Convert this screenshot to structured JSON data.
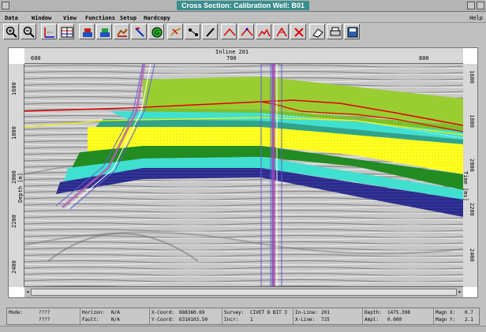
{
  "window": {
    "title": "Cross Section:   Calibration Well: B01"
  },
  "menu": {
    "items": [
      "Data",
      "Window",
      "View",
      "Functions",
      "Setup",
      "Hardcopy"
    ],
    "help": "Help"
  },
  "toolbar": {
    "icons": [
      "zoom-in-icon",
      "zoom-out-icon",
      "axes-icon",
      "grid-icon",
      "layers-icon",
      "layers-alt-icon",
      "horizon-icon",
      "pick-icon",
      "go-icon",
      "fault-icon",
      "connect-icon",
      "pencil-icon",
      "horizon-pick-icon",
      "horizon-edit-icon",
      "multi-pick-icon",
      "split-icon",
      "delete-icon",
      "eraser-icon",
      "printer-icon",
      "save-icon"
    ]
  },
  "plot": {
    "top_axis_title": "Inline 201",
    "top_ticks": [
      "600",
      "700",
      "800"
    ],
    "left_ticks": [
      "1600",
      "1800",
      "2000",
      "2200",
      "2400"
    ],
    "right_ticks": [
      "1600",
      "1800",
      "2000",
      "2200",
      "2400"
    ],
    "left_axis_title": "Depth [m]",
    "right_axis_title": "Time [ms]",
    "colors": {
      "green_top": "#9acd32",
      "red_horizon": "#e00000",
      "yellow_horizon": "#f0f000",
      "cyan": "#40e0d0",
      "yellow_sand": "#ffff20",
      "dark_green": "#228b22",
      "navy": "#2a2a8a",
      "well": "#6060d0"
    }
  },
  "status": {
    "mode_label": "Mode:",
    "mode_value": "????",
    "row2_value": "????",
    "horizon_label": "Horizon:",
    "horizon_value": "N/A",
    "fault_label": "Fault:",
    "fault_value": "N/A",
    "xcoord_label": "X-Coord:",
    "xcoord_value": "888360.69",
    "ycoord_label": "Y-Coord:",
    "ycoord_value": "6310103.50",
    "survey_label": "Survey:",
    "survey_value": "CIVET 8 BIT 3",
    "incr_label": "Incr:",
    "incr_value": "1",
    "inline_label": "In-Line:",
    "inline_value": "201",
    "xline_label": "X-Line:",
    "xline_value": "725",
    "depth_label": "Depth:",
    "depth_value": "1475.398",
    "ampl_label": "Ampl:",
    "ampl_value": "0.000",
    "magnx_label": "Magn X:",
    "magnx_value": "0.7",
    "magny_label": "Magn Y:",
    "magny_value": "2.1"
  }
}
